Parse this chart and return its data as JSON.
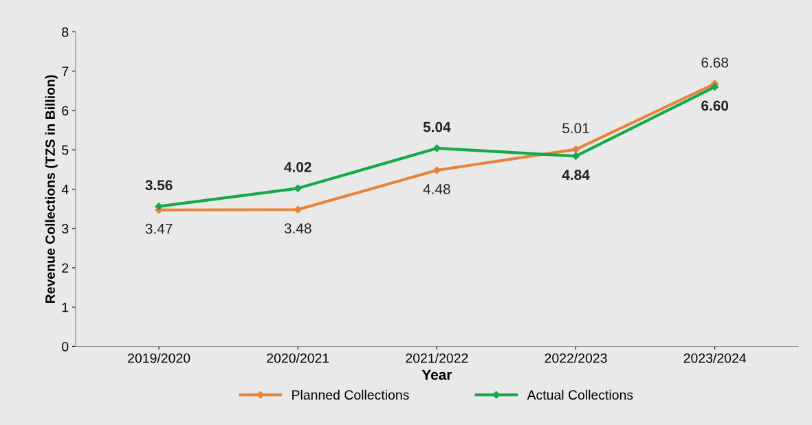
{
  "chart_data": {
    "type": "line",
    "xlabel": "Year",
    "ylabel": "Revenue Collections (TZS in Billion)",
    "categories": [
      "2019/2020",
      "2020/2021",
      "2021/2022",
      "2022/2023",
      "2023/2024"
    ],
    "series": [
      {
        "name": "Planned Collections",
        "color": "#e8833a",
        "values": [
          3.47,
          3.48,
          4.48,
          5.01,
          6.68
        ],
        "value_labels": [
          "3.47",
          "3.48",
          "4.48",
          "5.01",
          "6.68"
        ]
      },
      {
        "name": "Actual Collections",
        "color": "#16a84a",
        "values": [
          3.56,
          4.02,
          5.04,
          4.84,
          6.6
        ],
        "value_labels": [
          "3.56",
          "4.02",
          "5.04",
          "4.84",
          "6.60"
        ]
      }
    ],
    "ylim": [
      0,
      8
    ],
    "yticks": [
      0,
      1,
      2,
      3,
      4,
      5,
      6,
      7,
      8
    ],
    "grid": false,
    "legend": "bottom",
    "marker": "diamond",
    "line_style": "solid"
  }
}
